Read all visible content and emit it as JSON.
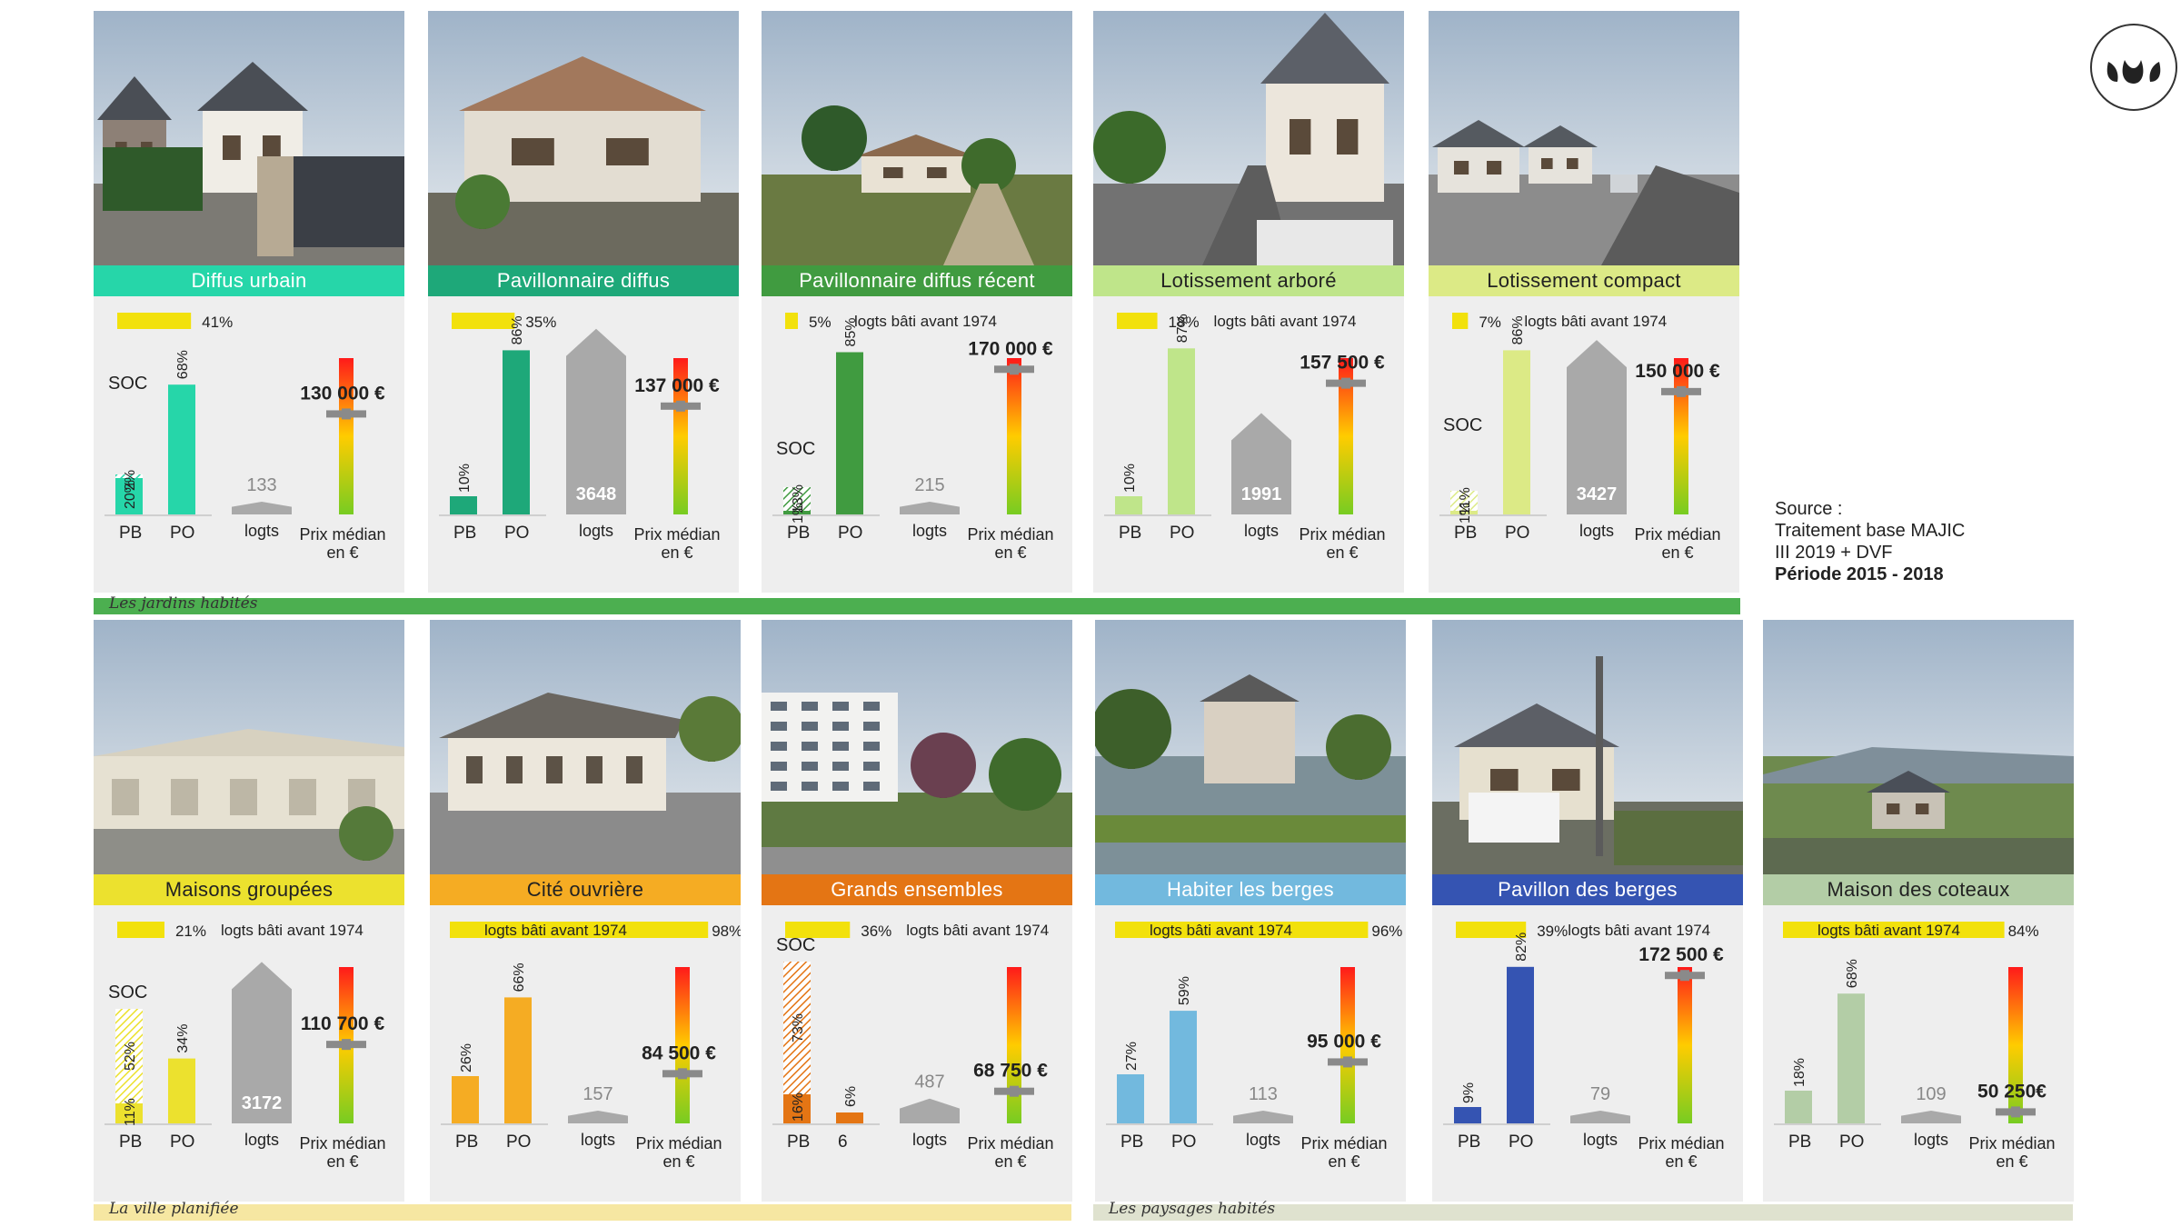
{
  "colors": {
    "thermo_top": "#ff1a1a",
    "thermo_mid": "#ffcc00",
    "thermo_bottom": "#77cc22",
    "logts_gray": "#a9a9a9",
    "pre1974_bar": "#f2e10c"
  },
  "labels": {
    "pre1974": "logts bâti avant 1974",
    "soc": "SOC",
    "pb": "PB",
    "po": "PO",
    "logts": "logts",
    "price_line1": "Prix médian",
    "price_line2": "en €"
  },
  "bands": [
    {
      "label": "Les jardins habités",
      "color": "#4caf50"
    },
    {
      "label": "La ville planifiée",
      "color": "#f6e7a2"
    },
    {
      "label": "Les paysages habités",
      "color": "#dfe2cf"
    }
  ],
  "source": {
    "line1": "Source :",
    "line2": "Traitement base MAJIC",
    "line3": "III 2019 + DVF",
    "line4": "Période 2015 - 2018"
  },
  "logo": {
    "icon": "three-leaves-icon"
  },
  "chart_data": [
    {
      "type": "bar",
      "title": "Diffus urbain",
      "color": "#26d6a9",
      "photo": "street-houses",
      "pre1974_pct": 41,
      "pre1974_label": "41%",
      "show_pre1974_text": false,
      "pre1974_style": "right",
      "soc": true,
      "pb": {
        "own_pct": 20,
        "own_label": "20%",
        "soc_pct": 2,
        "soc_label": "2%"
      },
      "po_pct": 68,
      "po_label": "68%",
      "logts": 133,
      "price_label": "130 000 €",
      "price": 130000
    },
    {
      "type": "bar",
      "title": "Pavillonnaire diffus",
      "color": "#1ea879",
      "photo": "pavilion",
      "pre1974_pct": 35,
      "pre1974_label": "35%",
      "show_pre1974_text": false,
      "pre1974_style": "right",
      "soc": false,
      "pb": {
        "own_pct": 10,
        "own_label": "10%"
      },
      "po_pct": 86,
      "po_label": "86%",
      "logts": 3648,
      "price_label": "137 000 €",
      "price": 137000
    },
    {
      "type": "bar",
      "title": "Pavillonnaire diffus récent",
      "color": "#409b40",
      "photo": "rural-house",
      "pre1974_pct": 5,
      "pre1974_label": "5%",
      "show_pre1974_text": true,
      "pre1974_style": "right",
      "soc": true,
      "pb": {
        "own_pct": 1,
        "own_label": "1%",
        "soc_pct": 13,
        "soc_label": "13%"
      },
      "po_pct": 85,
      "po_label": "85%",
      "logts": 215,
      "price_label": "170 000 €",
      "price": 170000
    },
    {
      "type": "bar",
      "title": "Lotissement arboré",
      "color": "#bfe58a",
      "photo": "tree-street",
      "pre1974_pct": 18,
      "pre1974_label": "18%",
      "show_pre1974_text": true,
      "pre1974_style": "right",
      "soc": false,
      "pb": {
        "own_pct": 10,
        "own_label": "10%"
      },
      "po_pct": 87,
      "po_label": "87%",
      "logts": 1991,
      "price_label": "157 500 €",
      "price": 157500
    },
    {
      "type": "bar",
      "title": "Lotissement compact",
      "color": "#dcea86",
      "photo": "compact-street",
      "pre1974_pct": 7,
      "pre1974_label": "7%",
      "show_pre1974_text": true,
      "pre1974_style": "right",
      "soc": true,
      "pb": {
        "own_pct": 1,
        "own_label": "1%",
        "soc_pct": 11,
        "soc_label": "11%"
      },
      "po_pct": 86,
      "po_label": "86%",
      "logts": 3427,
      "price_label": "150 000 €",
      "price": 150000
    },
    {
      "type": "bar",
      "title": "Maisons groupées",
      "color": "#ece12e",
      "photo": "terraced",
      "pre1974_pct": 21,
      "pre1974_label": "21%",
      "show_pre1974_text": true,
      "pre1974_style": "right",
      "soc": true,
      "pb": {
        "own_pct": 11,
        "own_label": "11%",
        "soc_pct": 52,
        "soc_label": "52%"
      },
      "po_pct": 34,
      "po_label": "34%",
      "logts": 3172,
      "price_label": "110 700 €",
      "price": 110700
    },
    {
      "type": "bar",
      "title": "Cité ouvrière",
      "color": "#f5ac23",
      "photo": "worker-houses",
      "pre1974_pct": 98,
      "pre1974_label": "98%",
      "show_pre1974_text": true,
      "pre1974_style": "inside",
      "soc": false,
      "pb": {
        "own_pct": 26,
        "own_label": "26%"
      },
      "po_pct": 66,
      "po_label": "66%",
      "logts": 157,
      "price_label": "84 500 €",
      "price": 84500
    },
    {
      "type": "bar",
      "title": "Grands ensembles",
      "color": "#e47514",
      "photo": "apartment-block",
      "pre1974_pct": 36,
      "pre1974_label": "36%",
      "show_pre1974_text": true,
      "pre1974_style": "right",
      "soc": true,
      "soc_label_clipped": true,
      "pb": {
        "own_pct": 16,
        "own_label": "16%",
        "soc_pct": 73,
        "soc_label": "73%"
      },
      "po_pct": 6,
      "po_label": "6%",
      "po_axis_label": "6",
      "logts": 487,
      "price_label": "68 750 €",
      "price": 68750
    },
    {
      "type": "bar",
      "title": "Habiter les berges",
      "color": "#72b9de",
      "photo": "river-mill",
      "pre1974_pct": 96,
      "pre1974_label": "96%",
      "show_pre1974_text": true,
      "pre1974_style": "inside",
      "soc": false,
      "pb": {
        "own_pct": 27,
        "own_label": "27%"
      },
      "po_pct": 59,
      "po_label": "59%",
      "logts": 113,
      "price_label": "95 000 €",
      "price": 95000
    },
    {
      "type": "bar",
      "title": "Pavillon des berges",
      "color": "#3554b2",
      "photo": "riverside-pavilion",
      "pre1974_pct": 39,
      "pre1974_label": "39%",
      "show_pre1974_text": true,
      "pre1974_style": "right-tight",
      "soc": false,
      "pb": {
        "own_pct": 9,
        "own_label": "9%"
      },
      "po_pct": 82,
      "po_label": "82%",
      "logts": 79,
      "price_label": "172 500 €",
      "price": 172500
    },
    {
      "type": "bar",
      "title": "Maison des coteaux",
      "color": "#b3cda6",
      "photo": "hillside",
      "pre1974_pct": 84,
      "pre1974_label": "84%",
      "show_pre1974_text": true,
      "pre1974_style": "inside",
      "soc": false,
      "pb": {
        "own_pct": 18,
        "own_label": "18%"
      },
      "po_pct": 68,
      "po_label": "68%",
      "logts": 109,
      "price_label": "50 250€",
      "price": 50250
    }
  ]
}
